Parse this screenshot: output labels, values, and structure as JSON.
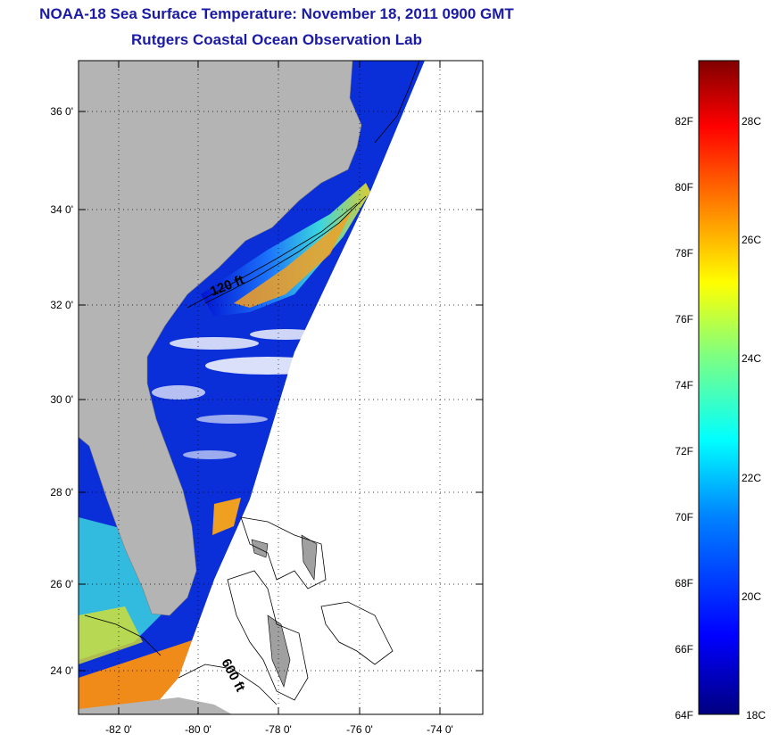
{
  "header": {
    "title": "NOAA-18 Sea Surface Temperature:  November 18, 2011 0900 GMT",
    "subtitle": "Rutgers Coastal Ocean Observation Lab"
  },
  "map": {
    "lat_ticks": [
      "36 0'",
      "34 0'",
      "32 0'",
      "30 0'",
      "28 0'",
      "26 0'",
      "24 0'"
    ],
    "lon_ticks": [
      "-82 0'",
      "-80 0'",
      "-78 0'",
      "-76 0'",
      "-74 0'"
    ],
    "lat_range": [
      23,
      37.1
    ],
    "lon_range": [
      -83,
      -73
    ],
    "contour_labels": [
      "120 ft",
      "600 ft"
    ],
    "land_color": "#b4b4b4"
  },
  "colorbar": {
    "f_labels": [
      "82F",
      "80F",
      "78F",
      "76F",
      "74F",
      "72F",
      "70F",
      "68F",
      "66F",
      "64F"
    ],
    "c_labels": [
      "28C",
      "26C",
      "24C",
      "22C",
      "20C",
      "18C"
    ],
    "range_c": [
      18,
      29
    ]
  }
}
